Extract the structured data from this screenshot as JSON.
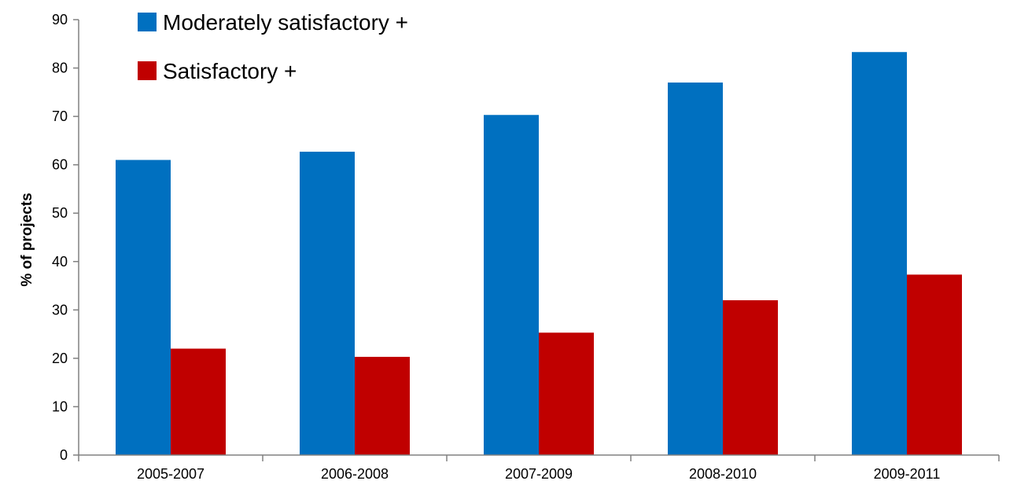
{
  "chart_data": {
    "type": "bar",
    "categories": [
      "2005-2007",
      "2006-2008",
      "2007-2009",
      "2008-2010",
      "2009-2011"
    ],
    "series": [
      {
        "name": "Moderately satisfactory +",
        "values": [
          61,
          62.7,
          70.3,
          77,
          83.3
        ],
        "color": "#0070C0"
      },
      {
        "name": "Satisfactory +",
        "values": [
          22,
          20.3,
          25.3,
          32,
          37.3
        ],
        "color": "#C00000"
      }
    ],
    "title": "",
    "xlabel": "",
    "ylabel": "% of projects",
    "ylim": [
      0,
      90
    ],
    "yticks": [
      0,
      10,
      20,
      30,
      40,
      50,
      60,
      70,
      80,
      90
    ],
    "grid": false,
    "legend_position": "top-left"
  }
}
